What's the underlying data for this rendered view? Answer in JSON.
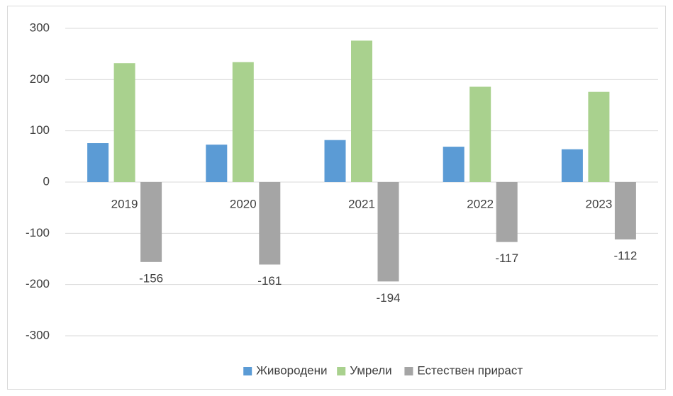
{
  "chart_data": {
    "type": "bar",
    "categories": [
      "2019",
      "2020",
      "2021",
      "2022",
      "2023"
    ],
    "series": [
      {
        "name": "Живородени",
        "color": "#5b9bd5",
        "values": [
          76,
          73,
          82,
          69,
          64
        ]
      },
      {
        "name": "Умрели",
        "color": "#a9d18e",
        "values": [
          232,
          234,
          276,
          186,
          176
        ]
      },
      {
        "name": "Естествен прираст",
        "color": "#a5a5a5",
        "values": [
          -156,
          -161,
          -194,
          -117,
          -112
        ],
        "show_labels": true
      }
    ],
    "ylim": [
      -300,
      300
    ],
    "yticks": [
      -300,
      -200,
      -100,
      0,
      100,
      200,
      300
    ],
    "grid": true,
    "legend": "bottom"
  }
}
